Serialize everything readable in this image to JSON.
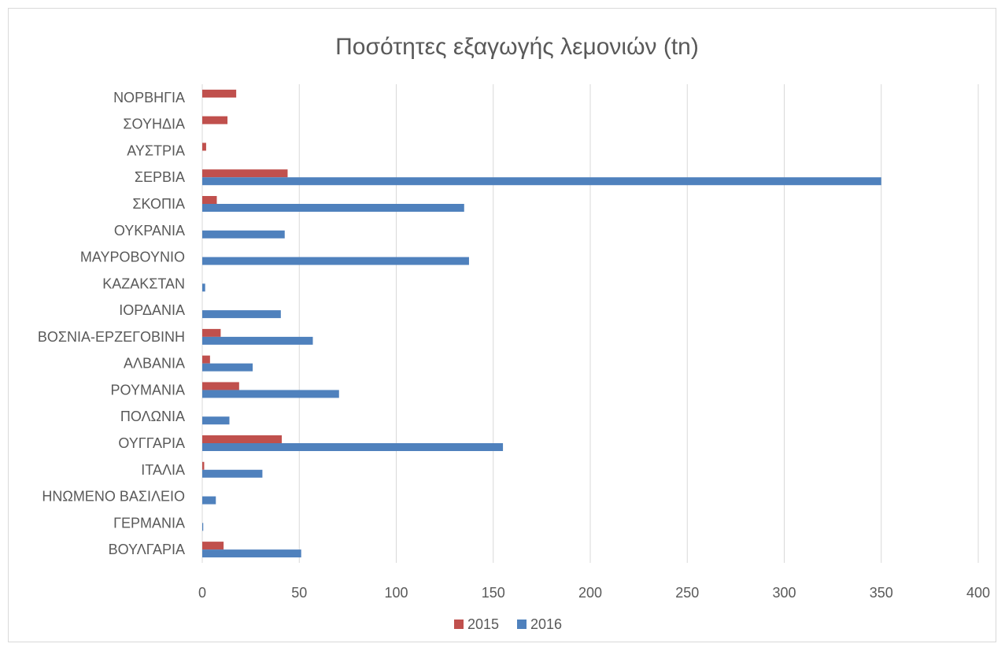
{
  "chart_data": {
    "type": "bar",
    "orientation": "horizontal",
    "title": "Ποσότητες εξαγωγής λεμονιών (tn)",
    "categories": [
      "ΝΟΡΒΗΓΙΑ",
      "ΣΟΥΗΔΙΑ",
      "ΑΥΣΤΡΙΑ",
      "ΣΕΡΒΙΑ",
      "ΣΚΟΠΙΑ",
      "ΟΥΚΡΑΝΙΑ",
      "ΜΑΥΡΟΒΟΥΝΙΟ",
      "ΚΑΖΑΚΣΤΑΝ",
      "ΙΟΡΔΑΝΙΑ",
      "ΒΟΣΝΙΑ-ΕΡΖΕΓΟΒΙΝΗ",
      "ΑΛΒΑΝΙΑ",
      "ΡΟΥΜΑΝΙΑ",
      "ΠΟΛΩΝΙΑ",
      "ΟΥΓΓΑΡΙΑ",
      "ΙΤΑΛΙΑ",
      "ΗΝΩΜΕΝΟ ΒΑΣΙΛΕΙΟ",
      "ΓΕΡΜΑΝΙΑ",
      "ΒΟΥΛΓΑΡΙΑ"
    ],
    "series": [
      {
        "name": "2015",
        "color": "#c0504d",
        "values": [
          17.5,
          13,
          2,
          44,
          7.5,
          0,
          0,
          0,
          0,
          9.5,
          4,
          19,
          0,
          41,
          1,
          0,
          0,
          11
        ]
      },
      {
        "name": "2016",
        "color": "#4f81bd",
        "values": [
          0,
          0,
          0,
          350,
          135,
          42.5,
          137.5,
          1.5,
          40.5,
          57,
          26,
          70.5,
          14,
          155,
          31,
          7,
          0.5,
          51
        ]
      }
    ],
    "xaxis": {
      "ticks": [
        "0",
        "50",
        "100",
        "150",
        "200",
        "250",
        "300",
        "350",
        "400"
      ],
      "range": [
        0,
        400
      ]
    },
    "grid": "vertical major gridlines",
    "legend_position": "bottom"
  }
}
